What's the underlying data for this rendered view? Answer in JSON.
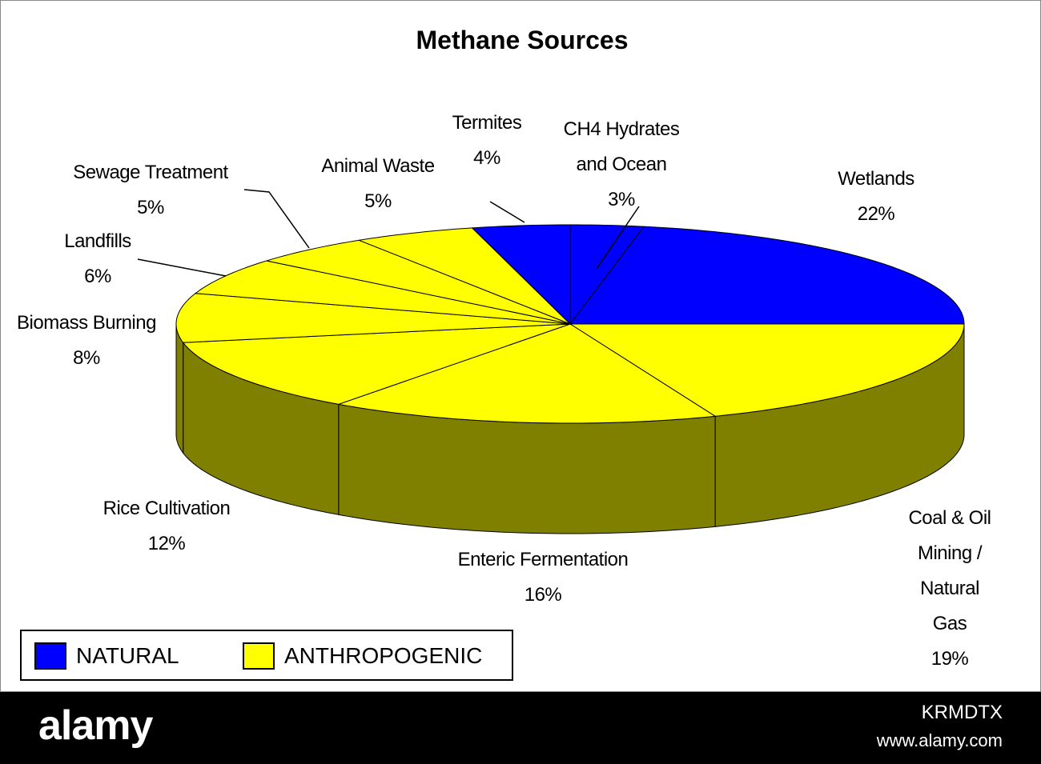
{
  "chart_data": {
    "type": "pie3d",
    "title": "Methane Sources",
    "categories": [
      "CH4 Hydrates\nand Ocean",
      "Wetlands",
      "Coal & Oil Mining /\nNatural Gas",
      "Enteric Fermentation",
      "Rice Cultivation",
      "Biomass Burning",
      "Landfills",
      "Sewage Treatment",
      "Animal Waste",
      "Termites"
    ],
    "values": [
      3,
      22,
      19,
      16,
      12,
      8,
      6,
      5,
      5,
      4
    ],
    "value_labels": [
      "3%",
      "22%",
      "19%",
      "16%",
      "12%",
      "8%",
      "6%",
      "5%",
      "5%",
      "4%"
    ],
    "colors": [
      "#0000ff",
      "#0000ff",
      "#ffff00",
      "#ffff00",
      "#ffff00",
      "#ffff00",
      "#ffff00",
      "#ffff00",
      "#ffff00",
      "#0000ff"
    ],
    "side_colors": [
      "#000080",
      "#000080",
      "#808000",
      "#808000",
      "#808000",
      "#808000",
      "#808000",
      "#808000",
      "#808000",
      "#000080"
    ],
    "legend": [
      {
        "name": "NATURAL",
        "color": "#0000ff"
      },
      {
        "name": "ANTHROPOGENIC",
        "color": "#ffff00"
      }
    ]
  },
  "footer": {
    "brand": "alamy",
    "image_id": "KRMDTX",
    "url": "www.alamy.com"
  }
}
